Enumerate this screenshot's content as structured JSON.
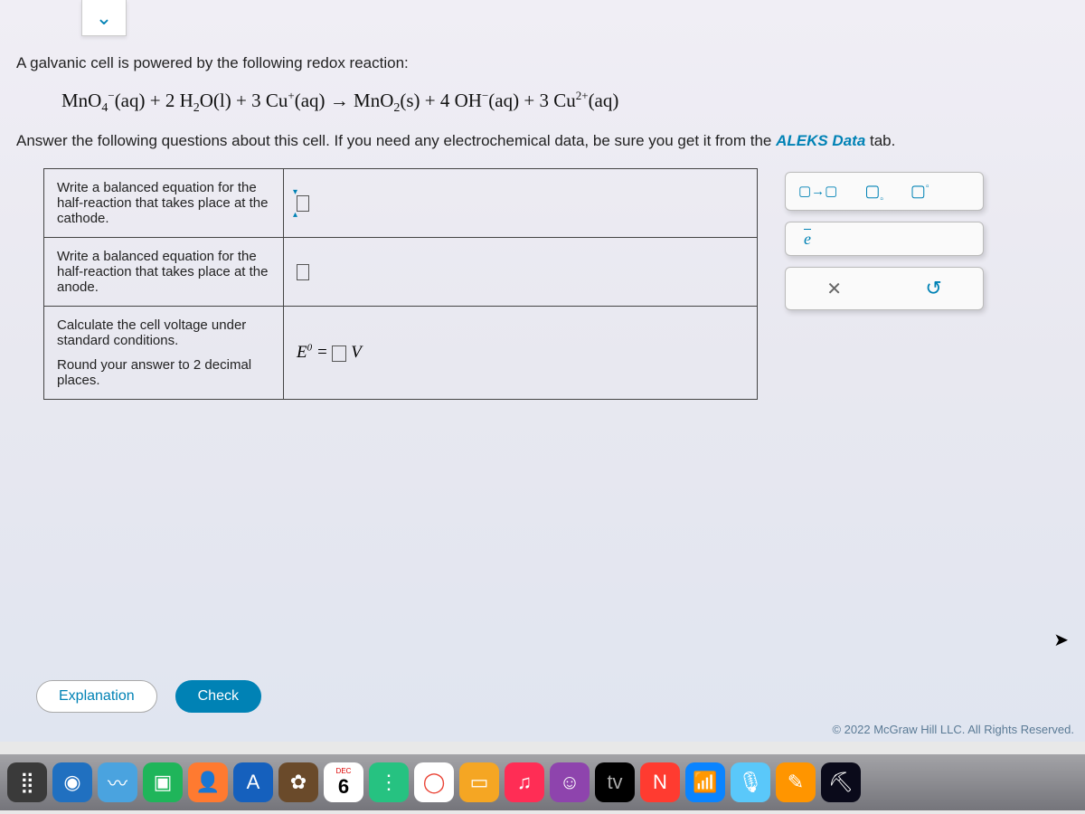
{
  "intro": "A galvanic cell is powered by the following redox reaction:",
  "equation": {
    "lhs": "MnO₄⁻(aq) + 2 H₂O(l) + 3 Cu⁺(aq)",
    "arrow": "→",
    "rhs": "MnO₂(s) + 4 OH⁻(aq) + 3 Cu²⁺(aq)"
  },
  "hint_pre": "Answer the following questions about this cell. If you need any electrochemical data, ",
  "hint_mid": "be sure",
  "hint_post": " you get it from the ",
  "hint_tab": "ALEKS Data",
  "hint_end": " tab.",
  "questions": {
    "q1": "Write a balanced equation for the half-reaction that takes place at the cathode.",
    "q2": "Write a balanced equation for the half-reaction that takes place at the anode.",
    "q3a": "Calculate the cell voltage under standard conditions.",
    "q3b": "Round your answer to 2 decimal places.",
    "voltage_label_pre": "E",
    "voltage_label_sup": "0",
    "voltage_label_eq": " = ",
    "voltage_unit": " V"
  },
  "palette": {
    "yields": "▢→▢",
    "sub": "▢▫",
    "sup": "▢▫",
    "e": "e",
    "x": "✕",
    "reset": "↺"
  },
  "buttons": {
    "explanation": "Explanation",
    "check": "Check"
  },
  "copyright": "© 2022 McGraw Hill LLC. All Rights Reserved.",
  "dock": {
    "items": [
      {
        "bg": "#3a3a3a",
        "glyph": "⣿"
      },
      {
        "bg": "#2070c0",
        "glyph": "◉"
      },
      {
        "bg": "#4aa3df",
        "glyph": "〰"
      },
      {
        "bg": "#1fb55a",
        "glyph": "▣"
      },
      {
        "bg": "#ff7a30",
        "glyph": "👤"
      },
      {
        "bg": "#1560bd",
        "glyph": "A"
      },
      {
        "bg": "#6a4a2a",
        "glyph": "✿"
      },
      {
        "bg": "#ffffff",
        "glyph": "6",
        "label": "DEC",
        "txt": "#000"
      },
      {
        "bg": "#26c281",
        "glyph": "⋮"
      },
      {
        "bg": "#ffffff",
        "glyph": "◯",
        "txt": "#ea4335"
      },
      {
        "bg": "#f5a623",
        "glyph": "▭"
      },
      {
        "bg": "#ff2d55",
        "glyph": "♫"
      },
      {
        "bg": "#8e44ad",
        "glyph": "☺"
      },
      {
        "bg": "#000000",
        "glyph": "tv",
        "txt": "#aaa",
        "pre": ""
      },
      {
        "bg": "#ff3b30",
        "glyph": "N"
      },
      {
        "bg": "#0a84ff",
        "glyph": "📶"
      },
      {
        "bg": "#5ac8fa",
        "glyph": "🎙"
      },
      {
        "bg": "#ff9500",
        "glyph": "✎"
      },
      {
        "bg": "#0a0a1a",
        "glyph": "⛏"
      }
    ]
  },
  "colors": {
    "accent": "#0082b5",
    "border": "#444444",
    "panel_bg_top": "#f0eef5",
    "panel_bg_bottom": "#e0e5f0"
  }
}
